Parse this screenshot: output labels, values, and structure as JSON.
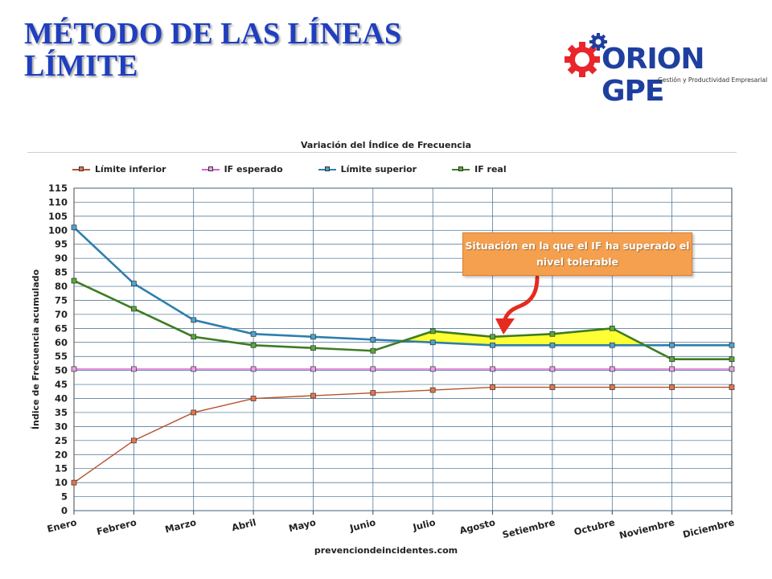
{
  "title": {
    "line1": "MÉTODO DE LAS LÍNEAS",
    "line2": "LÍMITE"
  },
  "logo": {
    "name": "ORION GPE",
    "tagline": "Gestión y Productividad Empresarial"
  },
  "callout": {
    "text": "Situación en la que el IF ha superado el nivel tolerable"
  },
  "source": "prevenciondeincidentes.com",
  "chart_data": {
    "type": "line",
    "title": "Variación del Índice de Frecuencia",
    "ylabel": "Índice de Frecuencia acumulado",
    "xlabel": "",
    "ylim": [
      0,
      115
    ],
    "yticks": [
      0,
      5,
      10,
      15,
      20,
      25,
      30,
      35,
      40,
      45,
      50,
      55,
      60,
      65,
      70,
      75,
      80,
      85,
      90,
      95,
      100,
      105,
      110,
      115
    ],
    "grid": true,
    "legend_position": "top",
    "categories": [
      "Enero",
      "Febrero",
      "Marzo",
      "Abril",
      "Mayo",
      "Junio",
      "Julio",
      "Agosto",
      "Setiembre",
      "Octubre",
      "Noviembre",
      "Diciembre"
    ],
    "series": [
      {
        "name": "Límite inferior",
        "color": "#b5522e",
        "marker": "#e8734a",
        "values": [
          10,
          25,
          35,
          40,
          41,
          42,
          43,
          44,
          44,
          44,
          44,
          44
        ]
      },
      {
        "name": "IF esperado",
        "color": "#d75fd7",
        "marker": "#e7a0e7",
        "values": [
          50.5,
          50.5,
          50.5,
          50.5,
          50.5,
          50.5,
          50.5,
          50.5,
          50.5,
          50.5,
          50.5,
          50.5
        ]
      },
      {
        "name": "Límite superior",
        "color": "#2e7fae",
        "marker": "#4ca3cf",
        "values": [
          101,
          81,
          68,
          63,
          62,
          61,
          60,
          59,
          59,
          59,
          59,
          59
        ]
      },
      {
        "name": "IF real",
        "color": "#3d7d22",
        "marker": "#58a83a",
        "values": [
          82,
          72,
          62,
          59,
          58,
          57,
          64,
          62,
          63,
          65,
          54,
          54
        ]
      }
    ],
    "highlight_color": "#ffff33"
  }
}
